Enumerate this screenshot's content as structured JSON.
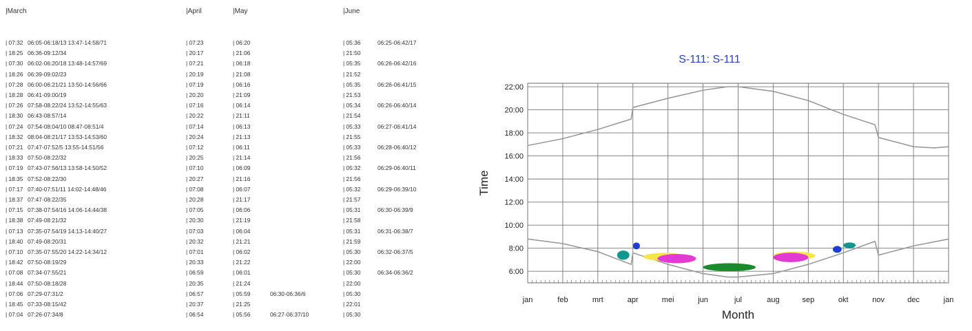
{
  "table": {
    "headers": [
      "|March",
      "|April",
      "|May",
      "|June"
    ],
    "rows": [
      [
        "| 07:32",
        "06:05-06:18/13 13:47-14:58/71",
        "| 07:23",
        "| 06:20",
        "",
        "| 05:36",
        "06:25-06:42/17"
      ],
      [
        "| 18:25",
        "06:36-09:12/34",
        "| 20:17",
        "| 21:06",
        "",
        "| 21:50",
        ""
      ],
      [
        "| 07:30",
        "06:02-06:20/18 13:48-14:57/69",
        "| 07:21",
        "| 06:18",
        "",
        "| 05:35",
        "06:26-06:42/16"
      ],
      [
        "| 18:26",
        "06:39-09:02/23",
        "| 20:19",
        "| 21:08",
        "",
        "| 21:52",
        ""
      ],
      [
        "| 07:28",
        "06:00-06:21/21 13:50-14:56/66",
        "| 07:19",
        "| 06:16",
        "",
        "| 05:35",
        "06:26-06:41/15"
      ],
      [
        "| 18:28",
        "06:41-09:00/19",
        "| 20:20",
        "| 21:09",
        "",
        "| 21:53",
        ""
      ],
      [
        "| 07:26",
        "07:58-08:22/24 13:52-14:55/63",
        "| 07:16",
        "| 06:14",
        "",
        "| 05:34",
        "06:26-06:40/14"
      ],
      [
        "| 18:30",
        "06:43-08:57/14",
        "| 20:22",
        "| 21:11",
        "",
        "| 21:54",
        ""
      ],
      [
        "| 07:24",
        "07:54-08:04/10 08:47-08:51/4",
        "| 07:14",
        "| 06:13",
        "",
        "| 05:33",
        "06:27-06:41/14"
      ],
      [
        "| 18:32",
        "08:04-08:21/17 13:53-14:53/60",
        "| 20:24",
        "| 21:13",
        "",
        "| 21:55",
        ""
      ],
      [
        "| 07:21",
        "07:47-07:52/5 13:55-14:51/56",
        "| 07:12",
        "| 06:11",
        "",
        "| 05:33",
        "06:28-06:40/12"
      ],
      [
        "| 18:33",
        "07:50-08:22/32",
        "| 20:25",
        "| 21:14",
        "",
        "| 21:56",
        ""
      ],
      [
        "| 07:19",
        "07:43-07:56/13 13:58-14:50/52",
        "| 07:10",
        "| 06:09",
        "",
        "| 05:32",
        "06:29-06:40/11"
      ],
      [
        "| 18:35",
        "07:52-08:22/30",
        "| 20:27",
        "| 21:16",
        "",
        "| 21:56",
        ""
      ],
      [
        "| 07:17",
        "07:40-07:51/11 14:02-14:48/46",
        "| 07:08",
        "| 06:07",
        "",
        "| 05:32",
        "06:29-06:39/10"
      ],
      [
        "| 18:37",
        "07:47-08:22/35",
        "| 20:28",
        "| 21:17",
        "",
        "| 21:57",
        ""
      ],
      [
        "| 07:15",
        "07:38-07:54/16 14:06-14:44/38",
        "| 07:05",
        "| 06:06",
        "",
        "| 05:31",
        "06:30-06:39/9"
      ],
      [
        "| 18:38",
        "07:49-08:21/32",
        "| 20:30",
        "| 21:19",
        "",
        "| 21:58",
        ""
      ],
      [
        "| 07:13",
        "07:35-07:54/19 14:13-14:40/27",
        "| 07:03",
        "| 06:04",
        "",
        "| 05:31",
        "06:31-06:38/7"
      ],
      [
        "| 18:40",
        "07:49-08:20/31",
        "| 20:32",
        "| 21:21",
        "",
        "| 21:59",
        ""
      ],
      [
        "| 07:10",
        "07:35-07:55/20 14:22-14:34/12",
        "| 07:01",
        "| 06:02",
        "",
        "| 05:30",
        "06:32-06:37/5"
      ],
      [
        "| 18:42",
        "07:50-08:19/29",
        "| 20:33",
        "| 21:22",
        "",
        "| 22:00",
        ""
      ],
      [
        "| 07:08",
        "07:34-07:55/21",
        "| 06:59",
        "| 06:01",
        "",
        "| 05:30",
        "06:34-06:36/2"
      ],
      [
        "| 18:44",
        "07:50-08:18/28",
        "| 20:35",
        "| 21:24",
        "",
        "| 22:00",
        ""
      ],
      [
        "| 07:06",
        "07:29-07:31/2",
        "| 06:57",
        "| 05:59",
        "06:30-06:36/6",
        "| 05:30",
        ""
      ],
      [
        "| 18:45",
        "07:33-08:15/42",
        "| 20:37",
        "| 21:25",
        "",
        "| 22:01",
        ""
      ],
      [
        "| 07:04",
        "07:26-07:34/8",
        "| 06:54",
        "| 05:56",
        "06:27-06:37/10",
        "| 05:30",
        ""
      ]
    ]
  },
  "chart_data": {
    "type": "line",
    "title": "S-111: S-111",
    "xlabel": "Month",
    "ylabel": "Time",
    "x_ticks": [
      "jan",
      "feb",
      "mrt",
      "apr",
      "mei",
      "jun",
      "jul",
      "aug",
      "sep",
      "okt",
      "nov",
      "dec",
      "jan"
    ],
    "y_ticks": [
      "6:00",
      "8:00",
      "10:00",
      "12:00",
      "14:00",
      "16:00",
      "18:00",
      "20:00",
      "22:00"
    ],
    "xlim": [
      0,
      12
    ],
    "ylim": [
      5,
      22.3
    ],
    "grid": true,
    "series": [
      {
        "role": "sunset",
        "color": "#9a9a9a",
        "x": [
          0,
          1,
          2,
          2.95,
          3.0,
          4,
          5,
          5.7,
          6,
          7,
          8,
          9,
          9.9,
          10.0,
          11,
          11.6,
          12
        ],
        "y": [
          16.9,
          17.5,
          18.3,
          19.2,
          20.2,
          21.0,
          21.7,
          22.0,
          22.0,
          21.6,
          20.8,
          19.6,
          18.7,
          17.6,
          16.8,
          16.7,
          16.8
        ]
      },
      {
        "role": "sunrise",
        "color": "#9a9a9a",
        "x": [
          0,
          1,
          2,
          2.95,
          3.0,
          4,
          5,
          5.7,
          6,
          7,
          8,
          9,
          9.9,
          10.0,
          11,
          12
        ],
        "y": [
          8.8,
          8.4,
          7.7,
          6.6,
          7.6,
          6.6,
          5.8,
          5.5,
          5.5,
          5.8,
          6.6,
          7.6,
          8.6,
          7.4,
          8.2,
          8.8
        ]
      }
    ],
    "shadow_blobs": [
      {
        "color": "#10978f",
        "x": [
          2.55,
          2.9
        ],
        "y": [
          7.0,
          7.8
        ]
      },
      {
        "color": "#1d3fd6",
        "x": [
          3.0,
          3.2
        ],
        "y": [
          7.9,
          8.5
        ]
      },
      {
        "color": "#f4e64a",
        "x": [
          3.3,
          4.5
        ],
        "y": [
          6.9,
          7.6
        ]
      },
      {
        "color": "#e23ad3",
        "x": [
          3.7,
          4.8
        ],
        "y": [
          6.7,
          7.5
        ]
      },
      {
        "color": "#1a8a2a",
        "x": [
          5.0,
          6.5
        ],
        "y": [
          6.0,
          6.7
        ]
      },
      {
        "color": "#f4e64a",
        "x": [
          7.0,
          8.2
        ],
        "y": [
          7.0,
          7.7
        ]
      },
      {
        "color": "#e23ad3",
        "x": [
          7.0,
          8.0
        ],
        "y": [
          6.8,
          7.6
        ]
      },
      {
        "color": "#1d3fd6",
        "x": [
          8.7,
          8.95
        ],
        "y": [
          7.6,
          8.2
        ]
      },
      {
        "color": "#10978f",
        "x": [
          9.0,
          9.35
        ],
        "y": [
          8.0,
          8.5
        ]
      }
    ]
  }
}
